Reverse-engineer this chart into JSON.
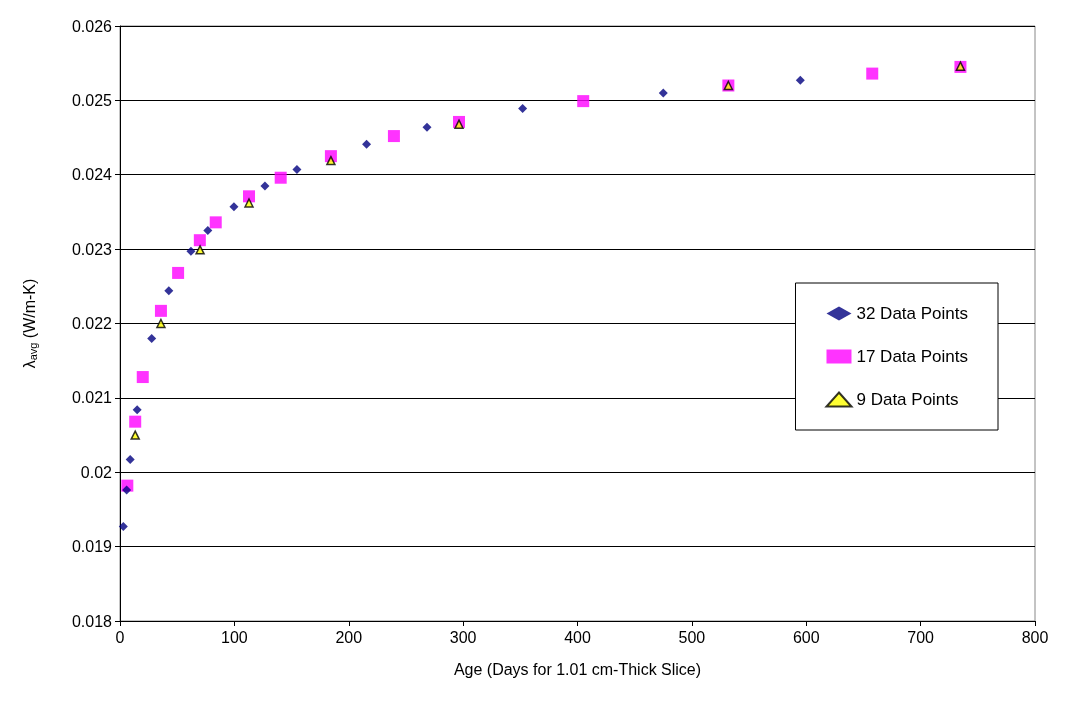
{
  "chart_data": {
    "type": "scatter",
    "xlabel": "Age (Days for 1.01 cm-Thick Slice)",
    "ylabel": "λ$_{avg}$ (W/m-K)",
    "xlim": [
      0,
      800
    ],
    "xticks": [
      0,
      100,
      200,
      300,
      400,
      500,
      600,
      700,
      800
    ],
    "ylim": [
      0.018,
      0.026
    ],
    "yticks": [
      0.018,
      0.019,
      0.02,
      0.021,
      0.022,
      0.023,
      0.024,
      0.025,
      0.026
    ],
    "grid": "y",
    "legend": "right",
    "series": [
      {
        "name": "32 Data Points",
        "color": "#000080",
        "marker": "diamond",
        "x": [
          2.9,
          5.8,
          8.9,
          15,
          27.7,
          42.7,
          62,
          76.8,
          99.6,
          126.7,
          154.7,
          215.6,
          268.4,
          352,
          475,
          594.8
        ],
        "values": [
          0.01927,
          0.01976,
          0.02017,
          0.02084,
          0.0218,
          0.02244,
          0.02297,
          0.02325,
          0.02357,
          0.02385,
          0.02407,
          0.02441,
          0.02464,
          0.02489,
          0.0251,
          0.02527
        ]
      },
      {
        "name": "17 Data Points",
        "color": "#ff00ff",
        "marker": "square",
        "x": [
          6.4,
          13.3,
          19.9,
          35.8,
          50.8,
          69.8,
          83.7,
          112.8,
          140.5,
          184.4,
          239.5,
          296.4,
          405,
          531.9,
          657.7,
          734.8
        ],
        "values": [
          0.01982,
          0.02068,
          0.02128,
          0.02217,
          0.02268,
          0.02312,
          0.02336,
          0.02371,
          0.02396,
          0.02425,
          0.02452,
          0.02471,
          0.02499,
          0.0252,
          0.02536,
          0.02545
        ]
      },
      {
        "name": "9 Data Points",
        "color": "#ffff00",
        "marker": "triangle",
        "x": [
          13.3,
          35.8,
          70,
          112.8,
          184.4,
          296.4,
          531.9,
          734.8
        ],
        "values": [
          0.0205,
          0.022,
          0.02299,
          0.02362,
          0.02419,
          0.02468,
          0.0252,
          0.02546
        ]
      }
    ]
  }
}
